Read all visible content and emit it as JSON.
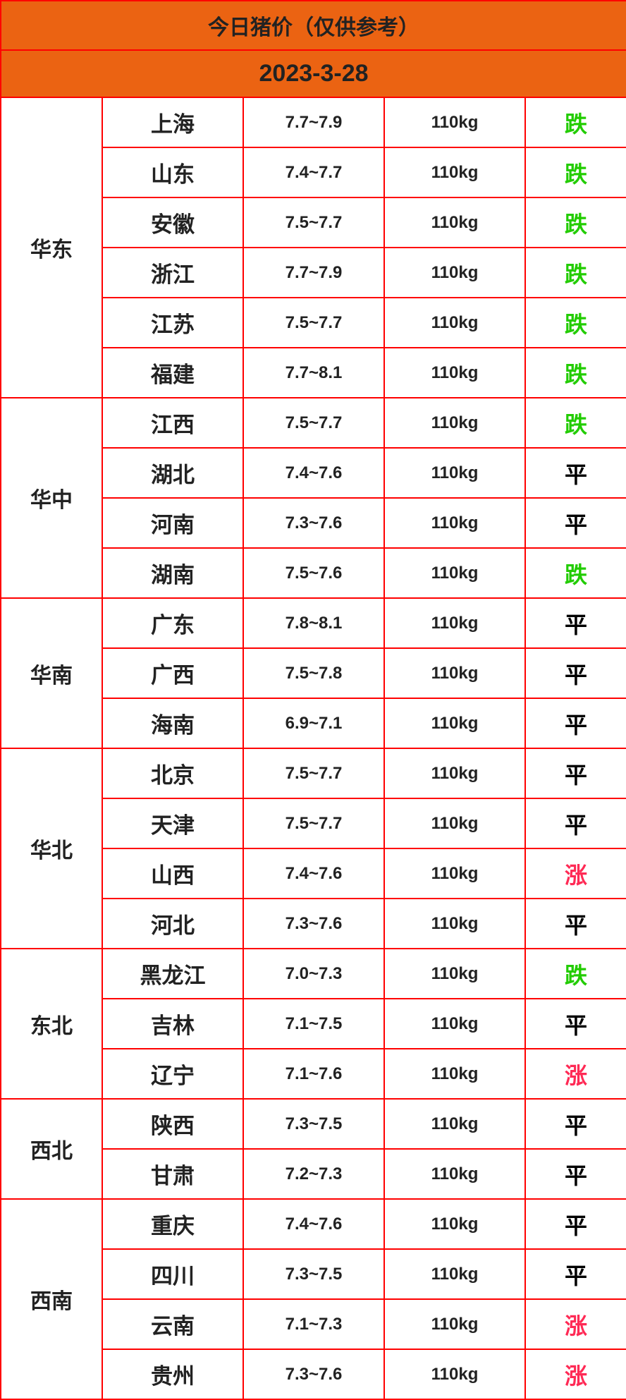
{
  "title": "今日猪价（仅供参考）",
  "date": "2023-3-28",
  "colors": {
    "header_bg": "#eb6312",
    "border": "#ff0000",
    "down": "#22cc00",
    "up": "#ff2a55",
    "flat": "#000000"
  },
  "groups": [
    {
      "region": "华东",
      "rows": [
        {
          "province": "上海",
          "price": "7.7~7.9",
          "weight": "110kg",
          "trend": "跌"
        },
        {
          "province": "山东",
          "price": "7.4~7.7",
          "weight": "110kg",
          "trend": "跌"
        },
        {
          "province": "安徽",
          "price": "7.5~7.7",
          "weight": "110kg",
          "trend": "跌"
        },
        {
          "province": "浙江",
          "price": "7.7~7.9",
          "weight": "110kg",
          "trend": "跌"
        },
        {
          "province": "江苏",
          "price": "7.5~7.7",
          "weight": "110kg",
          "trend": "跌"
        },
        {
          "province": "福建",
          "price": "7.7~8.1",
          "weight": "110kg",
          "trend": "跌"
        }
      ]
    },
    {
      "region": "华中",
      "rows": [
        {
          "province": "江西",
          "price": "7.5~7.7",
          "weight": "110kg",
          "trend": "跌"
        },
        {
          "province": "湖北",
          "price": "7.4~7.6",
          "weight": "110kg",
          "trend": "平"
        },
        {
          "province": "河南",
          "price": "7.3~7.6",
          "weight": "110kg",
          "trend": "平"
        },
        {
          "province": "湖南",
          "price": "7.5~7.6",
          "weight": "110kg",
          "trend": "跌"
        }
      ]
    },
    {
      "region": "华南",
      "rows": [
        {
          "province": "广东",
          "price": "7.8~8.1",
          "weight": "110kg",
          "trend": "平"
        },
        {
          "province": "广西",
          "price": "7.5~7.8",
          "weight": "110kg",
          "trend": "平"
        },
        {
          "province": "海南",
          "price": "6.9~7.1",
          "weight": "110kg",
          "trend": "平"
        }
      ]
    },
    {
      "region": "华北",
      "rows": [
        {
          "province": "北京",
          "price": "7.5~7.7",
          "weight": "110kg",
          "trend": "平"
        },
        {
          "province": "天津",
          "price": "7.5~7.7",
          "weight": "110kg",
          "trend": "平"
        },
        {
          "province": "山西",
          "price": "7.4~7.6",
          "weight": "110kg",
          "trend": "涨"
        },
        {
          "province": "河北",
          "price": "7.3~7.6",
          "weight": "110kg",
          "trend": "平"
        }
      ]
    },
    {
      "region": "东北",
      "rows": [
        {
          "province": "黑龙江",
          "price": "7.0~7.3",
          "weight": "110kg",
          "trend": "跌"
        },
        {
          "province": "吉林",
          "price": "7.1~7.5",
          "weight": "110kg",
          "trend": "平"
        },
        {
          "province": "辽宁",
          "price": "7.1~7.6",
          "weight": "110kg",
          "trend": "涨"
        }
      ]
    },
    {
      "region": "西北",
      "rows": [
        {
          "province": "陕西",
          "price": "7.3~7.5",
          "weight": "110kg",
          "trend": "平"
        },
        {
          "province": "甘肃",
          "price": "7.2~7.3",
          "weight": "110kg",
          "trend": "平"
        }
      ]
    },
    {
      "region": "西南",
      "rows": [
        {
          "province": "重庆",
          "price": "7.4~7.6",
          "weight": "110kg",
          "trend": "平"
        },
        {
          "province": "四川",
          "price": "7.3~7.5",
          "weight": "110kg",
          "trend": "平"
        },
        {
          "province": "云南",
          "price": "7.1~7.3",
          "weight": "110kg",
          "trend": "涨"
        },
        {
          "province": "贵州",
          "price": "7.3~7.6",
          "weight": "110kg",
          "trend": "涨"
        }
      ]
    }
  ]
}
